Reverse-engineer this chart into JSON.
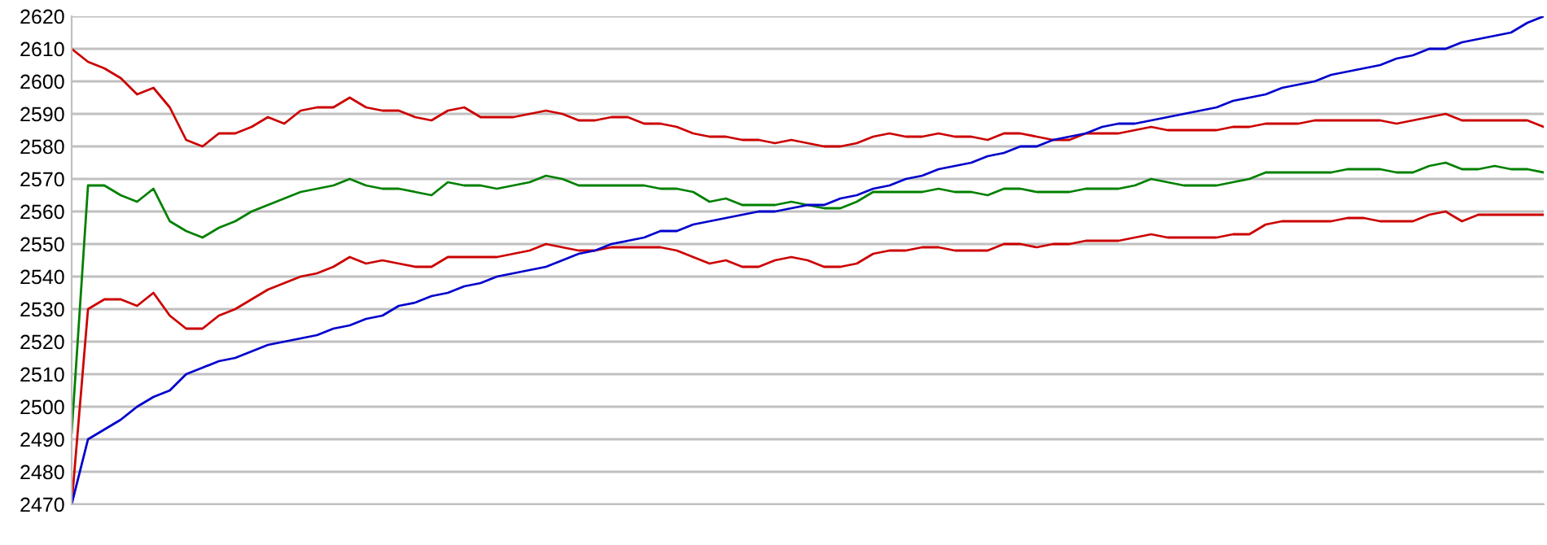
{
  "chart_data": {
    "type": "line",
    "categories": [
      null,
      null,
      null,
      null,
      null,
      null,
      null,
      null,
      null,
      null,
      null,
      null,
      null,
      null,
      null,
      null,
      null,
      null,
      null,
      null,
      null,
      null,
      null,
      null,
      null,
      null,
      null,
      null,
      null,
      null,
      null,
      null,
      null,
      null,
      null,
      null,
      null,
      null,
      null,
      null,
      null,
      null,
      null,
      null,
      null,
      null,
      null,
      null,
      null,
      null,
      null,
      null,
      null,
      null,
      null,
      null,
      null,
      null,
      null,
      null,
      null,
      null,
      null,
      null,
      null,
      null,
      null,
      null,
      null,
      null,
      null,
      null,
      null,
      null,
      null,
      null,
      null,
      null,
      null,
      null,
      null,
      null,
      null,
      null,
      null,
      null,
      null,
      null,
      null,
      null,
      null
    ],
    "series": [
      {
        "color": "#cc0000",
        "values": [
          2610,
          2606,
          2604,
          2601,
          2596,
          2598,
          2592,
          2582,
          2580,
          2584,
          2584,
          2586,
          2589,
          2587,
          2591,
          2592,
          2592,
          2595,
          2592,
          2591,
          2591,
          2589,
          2588,
          2591,
          2592,
          2589,
          2589,
          2589,
          2590,
          2591,
          2590,
          2588,
          2588,
          2589,
          2589,
          2587,
          2587,
          2586,
          2584,
          2583,
          2583,
          2582,
          2582,
          2581,
          2582,
          2581,
          2580,
          2580,
          2581,
          2583,
          2584,
          2583,
          2583,
          2584,
          2583,
          2583,
          2582,
          2584,
          2584,
          2583,
          2582,
          2582,
          2584,
          2584,
          2584,
          2585,
          2586,
          2585,
          2585,
          2585,
          2585,
          2586,
          2586,
          2587,
          2587,
          2587,
          2588,
          2588,
          2588,
          2588,
          2588,
          2587,
          2588,
          2589,
          2590,
          2588,
          2588,
          2588,
          2588,
          2588,
          2586
        ]
      },
      {
        "color": "#008000",
        "values": [
          2492,
          2568,
          2568,
          2565,
          2563,
          2567,
          2557,
          2554,
          2552,
          2555,
          2557,
          2560,
          2562,
          2564,
          2566,
          2567,
          2568,
          2570,
          2568,
          2567,
          2567,
          2566,
          2565,
          2569,
          2568,
          2568,
          2567,
          2568,
          2569,
          2571,
          2570,
          2568,
          2568,
          2568,
          2568,
          2568,
          2567,
          2567,
          2566,
          2563,
          2564,
          2562,
          2562,
          2562,
          2563,
          2562,
          2561,
          2561,
          2563,
          2566,
          2566,
          2566,
          2566,
          2567,
          2566,
          2566,
          2565,
          2567,
          2567,
          2566,
          2566,
          2566,
          2567,
          2567,
          2567,
          2568,
          2570,
          2569,
          2568,
          2568,
          2568,
          2569,
          2570,
          2572,
          2572,
          2572,
          2572,
          2572,
          2573,
          2573,
          2573,
          2572,
          2572,
          2574,
          2575,
          2573,
          2573,
          2574,
          2573,
          2573,
          2572
        ]
      },
      {
        "color": "#cc0000",
        "values": [
          2470,
          2530,
          2533,
          2533,
          2531,
          2535,
          2528,
          2524,
          2524,
          2528,
          2530,
          2533,
          2536,
          2538,
          2540,
          2541,
          2543,
          2546,
          2544,
          2545,
          2544,
          2543,
          2543,
          2546,
          2546,
          2546,
          2546,
          2547,
          2548,
          2550,
          2549,
          2548,
          2548,
          2549,
          2549,
          2549,
          2549,
          2548,
          2546,
          2544,
          2545,
          2543,
          2543,
          2545,
          2546,
          2545,
          2543,
          2543,
          2544,
          2547,
          2548,
          2548,
          2549,
          2549,
          2548,
          2548,
          2548,
          2550,
          2550,
          2549,
          2550,
          2550,
          2551,
          2551,
          2551,
          2552,
          2553,
          2552,
          2552,
          2552,
          2552,
          2553,
          2553,
          2556,
          2557,
          2557,
          2557,
          2557,
          2558,
          2558,
          2557,
          2557,
          2557,
          2559,
          2560,
          2557,
          2559,
          2559,
          2559,
          2559,
          2559
        ]
      },
      {
        "color": "#0000cc",
        "values": [
          2470,
          2490,
          2493,
          2496,
          2500,
          2503,
          2505,
          2510,
          2512,
          2514,
          2515,
          2517,
          2519,
          2520,
          2521,
          2522,
          2524,
          2525,
          2527,
          2528,
          2531,
          2532,
          2534,
          2535,
          2537,
          2538,
          2540,
          2541,
          2542,
          2543,
          2545,
          2547,
          2548,
          2550,
          2551,
          2552,
          2554,
          2554,
          2556,
          2557,
          2558,
          2559,
          2560,
          2560,
          2561,
          2562,
          2562,
          2564,
          2565,
          2567,
          2568,
          2570,
          2571,
          2573,
          2574,
          2575,
          2577,
          2578,
          2580,
          2580,
          2582,
          2583,
          2584,
          2586,
          2587,
          2587,
          2588,
          2589,
          2590,
          2591,
          2592,
          2594,
          2595,
          2596,
          2598,
          2599,
          2600,
          2602,
          2603,
          2604,
          2605,
          2607,
          2608,
          2610,
          2610,
          2612,
          2613,
          2614,
          2615,
          2618,
          2620
        ]
      }
    ],
    "ylim": [
      2470,
      2620
    ],
    "yticks": [
      2470,
      2480,
      2490,
      2500,
      2510,
      2520,
      2530,
      2540,
      2550,
      2560,
      2570,
      2580,
      2590,
      2600,
      2610,
      2620
    ],
    "grid": "y",
    "tick_labels": "y",
    "marker": "none",
    "line_style": "solid"
  }
}
